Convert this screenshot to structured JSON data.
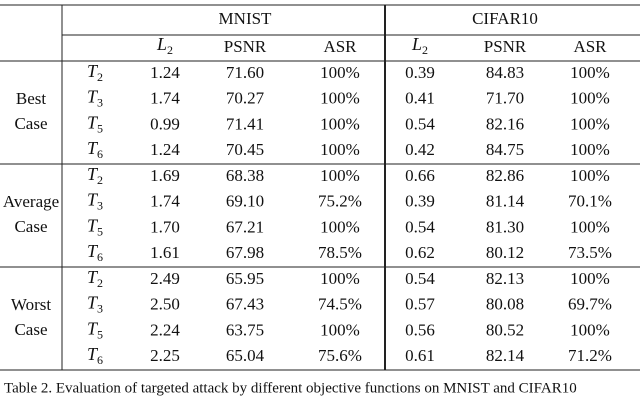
{
  "table": {
    "datasets": [
      "MNIST",
      "CIFAR10"
    ],
    "columns": [
      {
        "symbol": "L",
        "subscript": "2"
      },
      "PSNR",
      "ASR",
      {
        "symbol": "L",
        "subscript": "2"
      },
      "PSNR",
      "ASR"
    ],
    "groups": [
      {
        "label": [
          "Best",
          "Case"
        ],
        "rows": [
          {
            "symbol": "T",
            "subscript": "2",
            "cells": [
              "1.24",
              "71.60",
              "100%",
              "0.39",
              "84.83",
              "100%"
            ]
          },
          {
            "symbol": "T",
            "subscript": "3",
            "cells": [
              "1.74",
              "70.27",
              "100%",
              "0.41",
              "71.70",
              "100%"
            ]
          },
          {
            "symbol": "T",
            "subscript": "5",
            "cells": [
              "0.99",
              "71.41",
              "100%",
              "0.54",
              "82.16",
              "100%"
            ]
          },
          {
            "symbol": "T",
            "subscript": "6",
            "cells": [
              "1.24",
              "70.45",
              "100%",
              "0.42",
              "84.75",
              "100%"
            ]
          }
        ]
      },
      {
        "label": [
          "Average",
          "Case"
        ],
        "rows": [
          {
            "symbol": "T",
            "subscript": "2",
            "cells": [
              "1.69",
              "68.38",
              "100%",
              "0.66",
              "82.86",
              "100%"
            ]
          },
          {
            "symbol": "T",
            "subscript": "3",
            "cells": [
              "1.74",
              "69.10",
              "75.2%",
              "0.39",
              "81.14",
              "70.1%"
            ]
          },
          {
            "symbol": "T",
            "subscript": "5",
            "cells": [
              "1.70",
              "67.21",
              "100%",
              "0.54",
              "81.30",
              "100%"
            ]
          },
          {
            "symbol": "T",
            "subscript": "6",
            "cells": [
              "1.61",
              "67.98",
              "78.5%",
              "0.62",
              "80.12",
              "73.5%"
            ]
          }
        ]
      },
      {
        "label": [
          "Worst",
          "Case"
        ],
        "rows": [
          {
            "symbol": "T",
            "subscript": "2",
            "cells": [
              "2.49",
              "65.95",
              "100%",
              "0.54",
              "82.13",
              "100%"
            ]
          },
          {
            "symbol": "T",
            "subscript": "3",
            "cells": [
              "2.50",
              "67.43",
              "74.5%",
              "0.57",
              "80.08",
              "69.7%"
            ]
          },
          {
            "symbol": "T",
            "subscript": "5",
            "cells": [
              "2.24",
              "63.75",
              "100%",
              "0.56",
              "80.52",
              "100%"
            ]
          },
          {
            "symbol": "T",
            "subscript": "6",
            "cells": [
              "2.25",
              "65.04",
              "75.6%",
              "0.61",
              "82.14",
              "71.2%"
            ]
          }
        ]
      }
    ],
    "caption": "Table 2. Evaluation of targeted attack by different objective functions on MNIST and CIFAR10"
  }
}
